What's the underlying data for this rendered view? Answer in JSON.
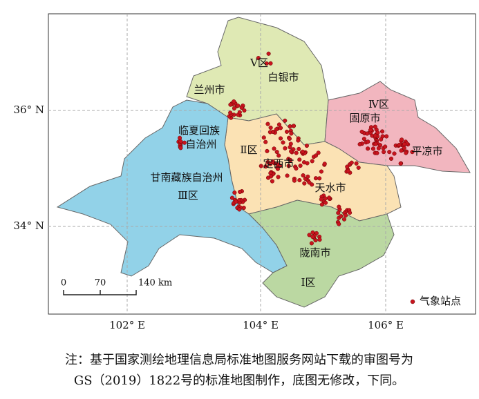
{
  "map": {
    "lat_labels": [
      "36° N",
      "34° N"
    ],
    "lon_labels": [
      "102° E",
      "104° E",
      "106° E"
    ],
    "region_labels": [
      "Ⅴ区",
      "白银市",
      "兰州市",
      "Ⅳ区",
      "固原市",
      "临夏回族",
      "自治州",
      "Ⅱ区",
      "定西市",
      "平凉市",
      "甘南藏族自治州",
      "Ⅲ区",
      "天水市",
      "陇南市",
      "Ⅰ区"
    ],
    "scale_bar": [
      "0",
      "70",
      "140 km"
    ],
    "legend": "气象站点"
  },
  "note": [
    "注：基于国家测绘地理信息局标准地图服务网站下载的审图号为",
    "GS（2019）1822号的标准地图制作，底图无修改，下同。"
  ]
}
